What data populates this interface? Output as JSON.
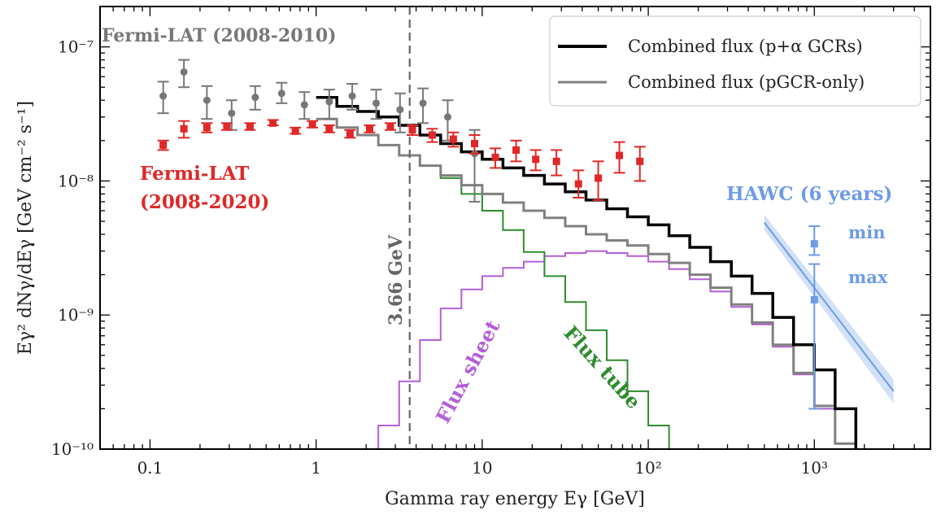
{
  "chart_data": {
    "type": "line",
    "xlabel": "Gamma ray energy Eγ [GeV]",
    "ylabel": "Eγ² dNγ/dEγ [GeV cm⁻² s⁻¹]",
    "xscale": "log",
    "yscale": "log",
    "xlim": [
      0.05,
      5000
    ],
    "ylim": [
      1e-10,
      2e-07
    ],
    "x_tick_labels": [
      "0.1",
      "1",
      "10",
      "10²",
      "10³"
    ],
    "x_tick_values": [
      0.1,
      1,
      10,
      100,
      1000
    ],
    "y_tick_labels": [
      "10⁻¹⁰",
      "10⁻⁹",
      "10⁻⁸",
      "10⁻⁷"
    ],
    "y_tick_values": [
      1e-10,
      1e-09,
      1e-08,
      1e-07
    ],
    "legend_position": "top-right",
    "legend": [
      {
        "label": "Combined flux (p+α GCRs)",
        "color": "#000000"
      },
      {
        "label": "Combined flux (pGCR-only)",
        "color": "#808080"
      }
    ],
    "series": [
      {
        "name": "Combined flux (p+α GCRs)",
        "kind": "step",
        "color": "#000000",
        "edges": [
          1.0,
          1.334,
          1.778,
          2.371,
          3.162,
          4.217,
          5.623,
          7.499,
          10.0,
          13.34,
          17.78,
          23.71,
          31.62,
          42.17,
          56.23,
          74.99,
          100.0,
          133.4,
          177.8,
          237.1,
          316.2,
          421.7,
          562.3,
          749.9,
          1000,
          1334,
          1778
        ],
        "values": [
          4.2e-08,
          3.6e-08,
          3.3e-08,
          3e-08,
          2.6e-08,
          2.2e-08,
          1.9e-08,
          1.65e-08,
          1.45e-08,
          1.25e-08,
          1.1e-08,
          9.5e-09,
          8.3e-09,
          7.2e-09,
          6.2e-09,
          5.4e-09,
          4.7e-09,
          3.9e-09,
          3.2e-09,
          2.5e-09,
          1.95e-09,
          1.45e-09,
          9.6e-10,
          6e-10,
          3.9e-10,
          2e-10,
          1e-10
        ]
      },
      {
        "name": "Combined flux (pGCR-only)",
        "kind": "step",
        "color": "#808080",
        "edges": [
          1.0,
          1.334,
          1.778,
          2.371,
          3.162,
          4.217,
          5.623,
          7.499,
          10.0,
          13.34,
          17.78,
          23.71,
          31.62,
          42.17,
          56.23,
          74.99,
          100.0,
          133.4,
          177.8,
          237.1,
          316.2,
          421.7,
          562.3,
          749.9,
          1000,
          1334,
          1778
        ],
        "values": [
          2.9e-08,
          2.5e-08,
          2.2e-08,
          1.85e-08,
          1.55e-08,
          1.3e-08,
          1.1e-08,
          9.3e-09,
          8e-09,
          6.9e-09,
          6e-09,
          5.3e-09,
          4.6e-09,
          4e-09,
          3.6e-09,
          3.3e-09,
          2.85e-09,
          2.45e-09,
          2e-09,
          1.6e-09,
          1.2e-09,
          8.8e-10,
          6e-10,
          3.7e-10,
          2.1e-10,
          1.1e-10,
          1e-10
        ]
      },
      {
        "name": "Flux sheet",
        "kind": "step",
        "color": "#b35fd6",
        "edges": [
          2.0,
          2.371,
          3.162,
          4.217,
          5.623,
          7.499,
          10.0,
          13.34,
          17.78,
          23.71,
          31.62,
          42.17,
          56.23,
          74.99,
          100.0,
          133.4,
          177.8,
          237.1,
          316.2,
          421.7,
          562.3,
          749.9,
          1000,
          1334,
          1778
        ],
        "values": [
          1e-10,
          1.5e-10,
          3.2e-10,
          6.5e-10,
          1.12e-09,
          1.55e-09,
          1.95e-09,
          2.25e-09,
          2.5e-09,
          2.75e-09,
          2.9e-09,
          3e-09,
          2.9e-09,
          2.75e-09,
          2.5e-09,
          2.2e-09,
          1.85e-09,
          1.5e-09,
          1.15e-09,
          8.5e-10,
          5.8e-10,
          3.6e-10,
          2e-10,
          1.1e-10
        ]
      },
      {
        "name": "Flux tube",
        "kind": "step",
        "color": "#2e8b2e",
        "edges": [
          3.162,
          4.217,
          5.623,
          7.499,
          10.0,
          13.34,
          17.78,
          23.71,
          31.62,
          42.17,
          56.23,
          74.99,
          100.0,
          133.4,
          177.8
        ],
        "values": [
          1.55e-08,
          1.3e-08,
          1.05e-08,
          8e-09,
          6e-09,
          4.3e-09,
          2.95e-09,
          1.95e-09,
          1.25e-09,
          7.7e-10,
          4.6e-10,
          2.7e-10,
          1.5e-10,
          1e-10
        ]
      }
    ],
    "points": [
      {
        "name": "Fermi-LAT (2008-2010)",
        "marker": "circle",
        "color": "#777777",
        "x": [
          0.12,
          0.16,
          0.22,
          0.31,
          0.43,
          0.62,
          0.85,
          1.2,
          1.65,
          2.3,
          3.2,
          4.4,
          6.2,
          9.0
        ],
        "y": [
          4.3e-08,
          6.5e-08,
          4e-08,
          3.2e-08,
          4.2e-08,
          4.5e-08,
          3.7e-08,
          3.9e-08,
          4.3e-08,
          3.8e-08,
          3.4e-08,
          3.8e-08,
          3e-08,
          1.6e-08
        ],
        "ylow": [
          3.2e-08,
          5e-08,
          2.9e-08,
          2.4e-08,
          3.4e-08,
          3.8e-08,
          2.9e-08,
          2.9e-08,
          3.4e-08,
          2.9e-08,
          2.3e-08,
          2.7e-08,
          2e-08,
          7e-09
        ],
        "yhigh": [
          5.5e-08,
          8e-08,
          5.1e-08,
          4e-08,
          5.1e-08,
          5.4e-08,
          4.6e-08,
          4.8e-08,
          5.3e-08,
          4.8e-08,
          4.5e-08,
          4.9e-08,
          4e-08,
          2.4e-08
        ]
      },
      {
        "name": "Fermi-LAT (2008-2020)",
        "marker": "square",
        "color": "#e02828",
        "x": [
          0.12,
          0.16,
          0.22,
          0.29,
          0.4,
          0.55,
          0.75,
          0.95,
          1.2,
          1.6,
          2.1,
          2.8,
          3.8,
          5.0,
          6.7,
          9.0,
          12.0,
          16.0,
          21.0,
          28.0,
          38.0,
          50.0,
          67.0,
          89.0
        ],
        "y": [
          1.85e-08,
          2.45e-08,
          2.5e-08,
          2.55e-08,
          2.55e-08,
          2.7e-08,
          2.35e-08,
          2.65e-08,
          2.45e-08,
          2.25e-08,
          2.45e-08,
          2.55e-08,
          2.4e-08,
          2.2e-08,
          2.05e-08,
          1.9e-08,
          1.5e-08,
          1.7e-08,
          1.45e-08,
          1.4e-08,
          9.5e-09,
          1.05e-08,
          1.55e-08,
          1.4e-08
        ],
        "ylow": [
          1.7e-08,
          2.1e-08,
          2.3e-08,
          2.4e-08,
          2.4e-08,
          2.6e-08,
          2.25e-08,
          2.5e-08,
          2.3e-08,
          2.1e-08,
          2.3e-08,
          2.4e-08,
          2.2e-08,
          1.95e-08,
          1.8e-08,
          1.6e-08,
          1.25e-08,
          1.4e-08,
          1.2e-08,
          1.1e-08,
          7.5e-09,
          7.2e-09,
          1.15e-08,
          1e-08
        ],
        "yhigh": [
          2e-08,
          2.8e-08,
          2.7e-08,
          2.7e-08,
          2.7e-08,
          2.85e-08,
          2.5e-08,
          2.8e-08,
          2.6e-08,
          2.4e-08,
          2.6e-08,
          2.7e-08,
          2.6e-08,
          2.45e-08,
          2.3e-08,
          2.2e-08,
          1.75e-08,
          2e-08,
          1.7e-08,
          1.7e-08,
          1.2e-08,
          1.4e-08,
          1.95e-08,
          1.8e-08
        ]
      },
      {
        "name": "HAWC (6 years)",
        "marker": "square",
        "color": "#6d9be6",
        "x": [
          1000,
          1000
        ],
        "labels": [
          "min",
          "max"
        ],
        "y": [
          3.4e-09,
          1.3e-09
        ],
        "ylow": [
          2.8e-09,
          2e-10
        ],
        "yhigh": [
          4.6e-09,
          2.4e-09
        ]
      }
    ],
    "hawc_band": {
      "color": "#6d9be6",
      "x": [
        500,
        3000
      ],
      "y_center": [
        4.9e-09,
        2.7e-10
      ],
      "y_low": [
        4.3e-09,
        2.2e-10
      ],
      "y_high": [
        5.6e-09,
        3.3e-10
      ]
    },
    "vline": {
      "x": 3.66,
      "label": "3.66 GeV",
      "color": "#666666"
    },
    "annotations": [
      {
        "text": "Fermi-LAT (2008-2010)",
        "color": "#777777"
      },
      {
        "text": "Fermi-LAT",
        "color": "#e02828"
      },
      {
        "text": "(2008-2020)",
        "color": "#e02828"
      },
      {
        "text": "HAWC (6 years)",
        "color": "#6d9be6"
      },
      {
        "text": "min",
        "color": "#6d9be6"
      },
      {
        "text": "max",
        "color": "#6d9be6"
      },
      {
        "text": "Flux sheet",
        "color": "#b35fd6"
      },
      {
        "text": "Flux tube",
        "color": "#2e8b2e"
      }
    ]
  }
}
